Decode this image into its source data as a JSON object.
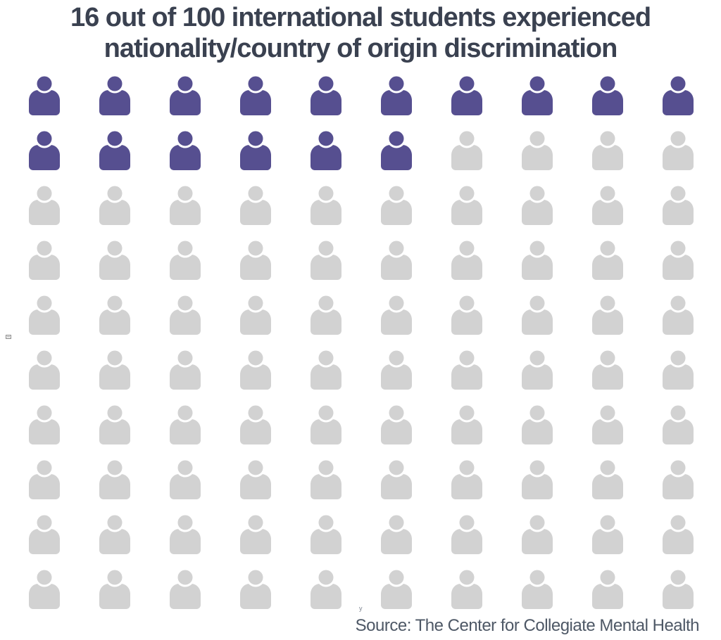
{
  "title": {
    "line1": "16 out of 100 international students experienced",
    "line2": "nationality/country of origin discrimination"
  },
  "footer": {
    "source": "Source: The Center for Collegiate Mental Health"
  },
  "artifacts": {
    "stray_text": "y"
  },
  "chart_data": {
    "type": "pictogram",
    "title": "16 out of 100 international students experienced nationality/country of origin discrimination",
    "unit": "international students",
    "value": 16,
    "total": 100,
    "value_label": "16 out of 100",
    "grid": {
      "rows": 10,
      "columns": 10,
      "fill_order": "row-major-from-top-left"
    },
    "icon": "person-icon",
    "colors": {
      "highlighted": "#564f90",
      "remaining": "#d2d2d2"
    },
    "source": "Source: The Center for Collegiate Mental Health",
    "legend": "none",
    "axes": "none"
  },
  "colors": {
    "background": "#ffffff",
    "title_text": "#3a4150",
    "source_text": "#4e5866"
  }
}
